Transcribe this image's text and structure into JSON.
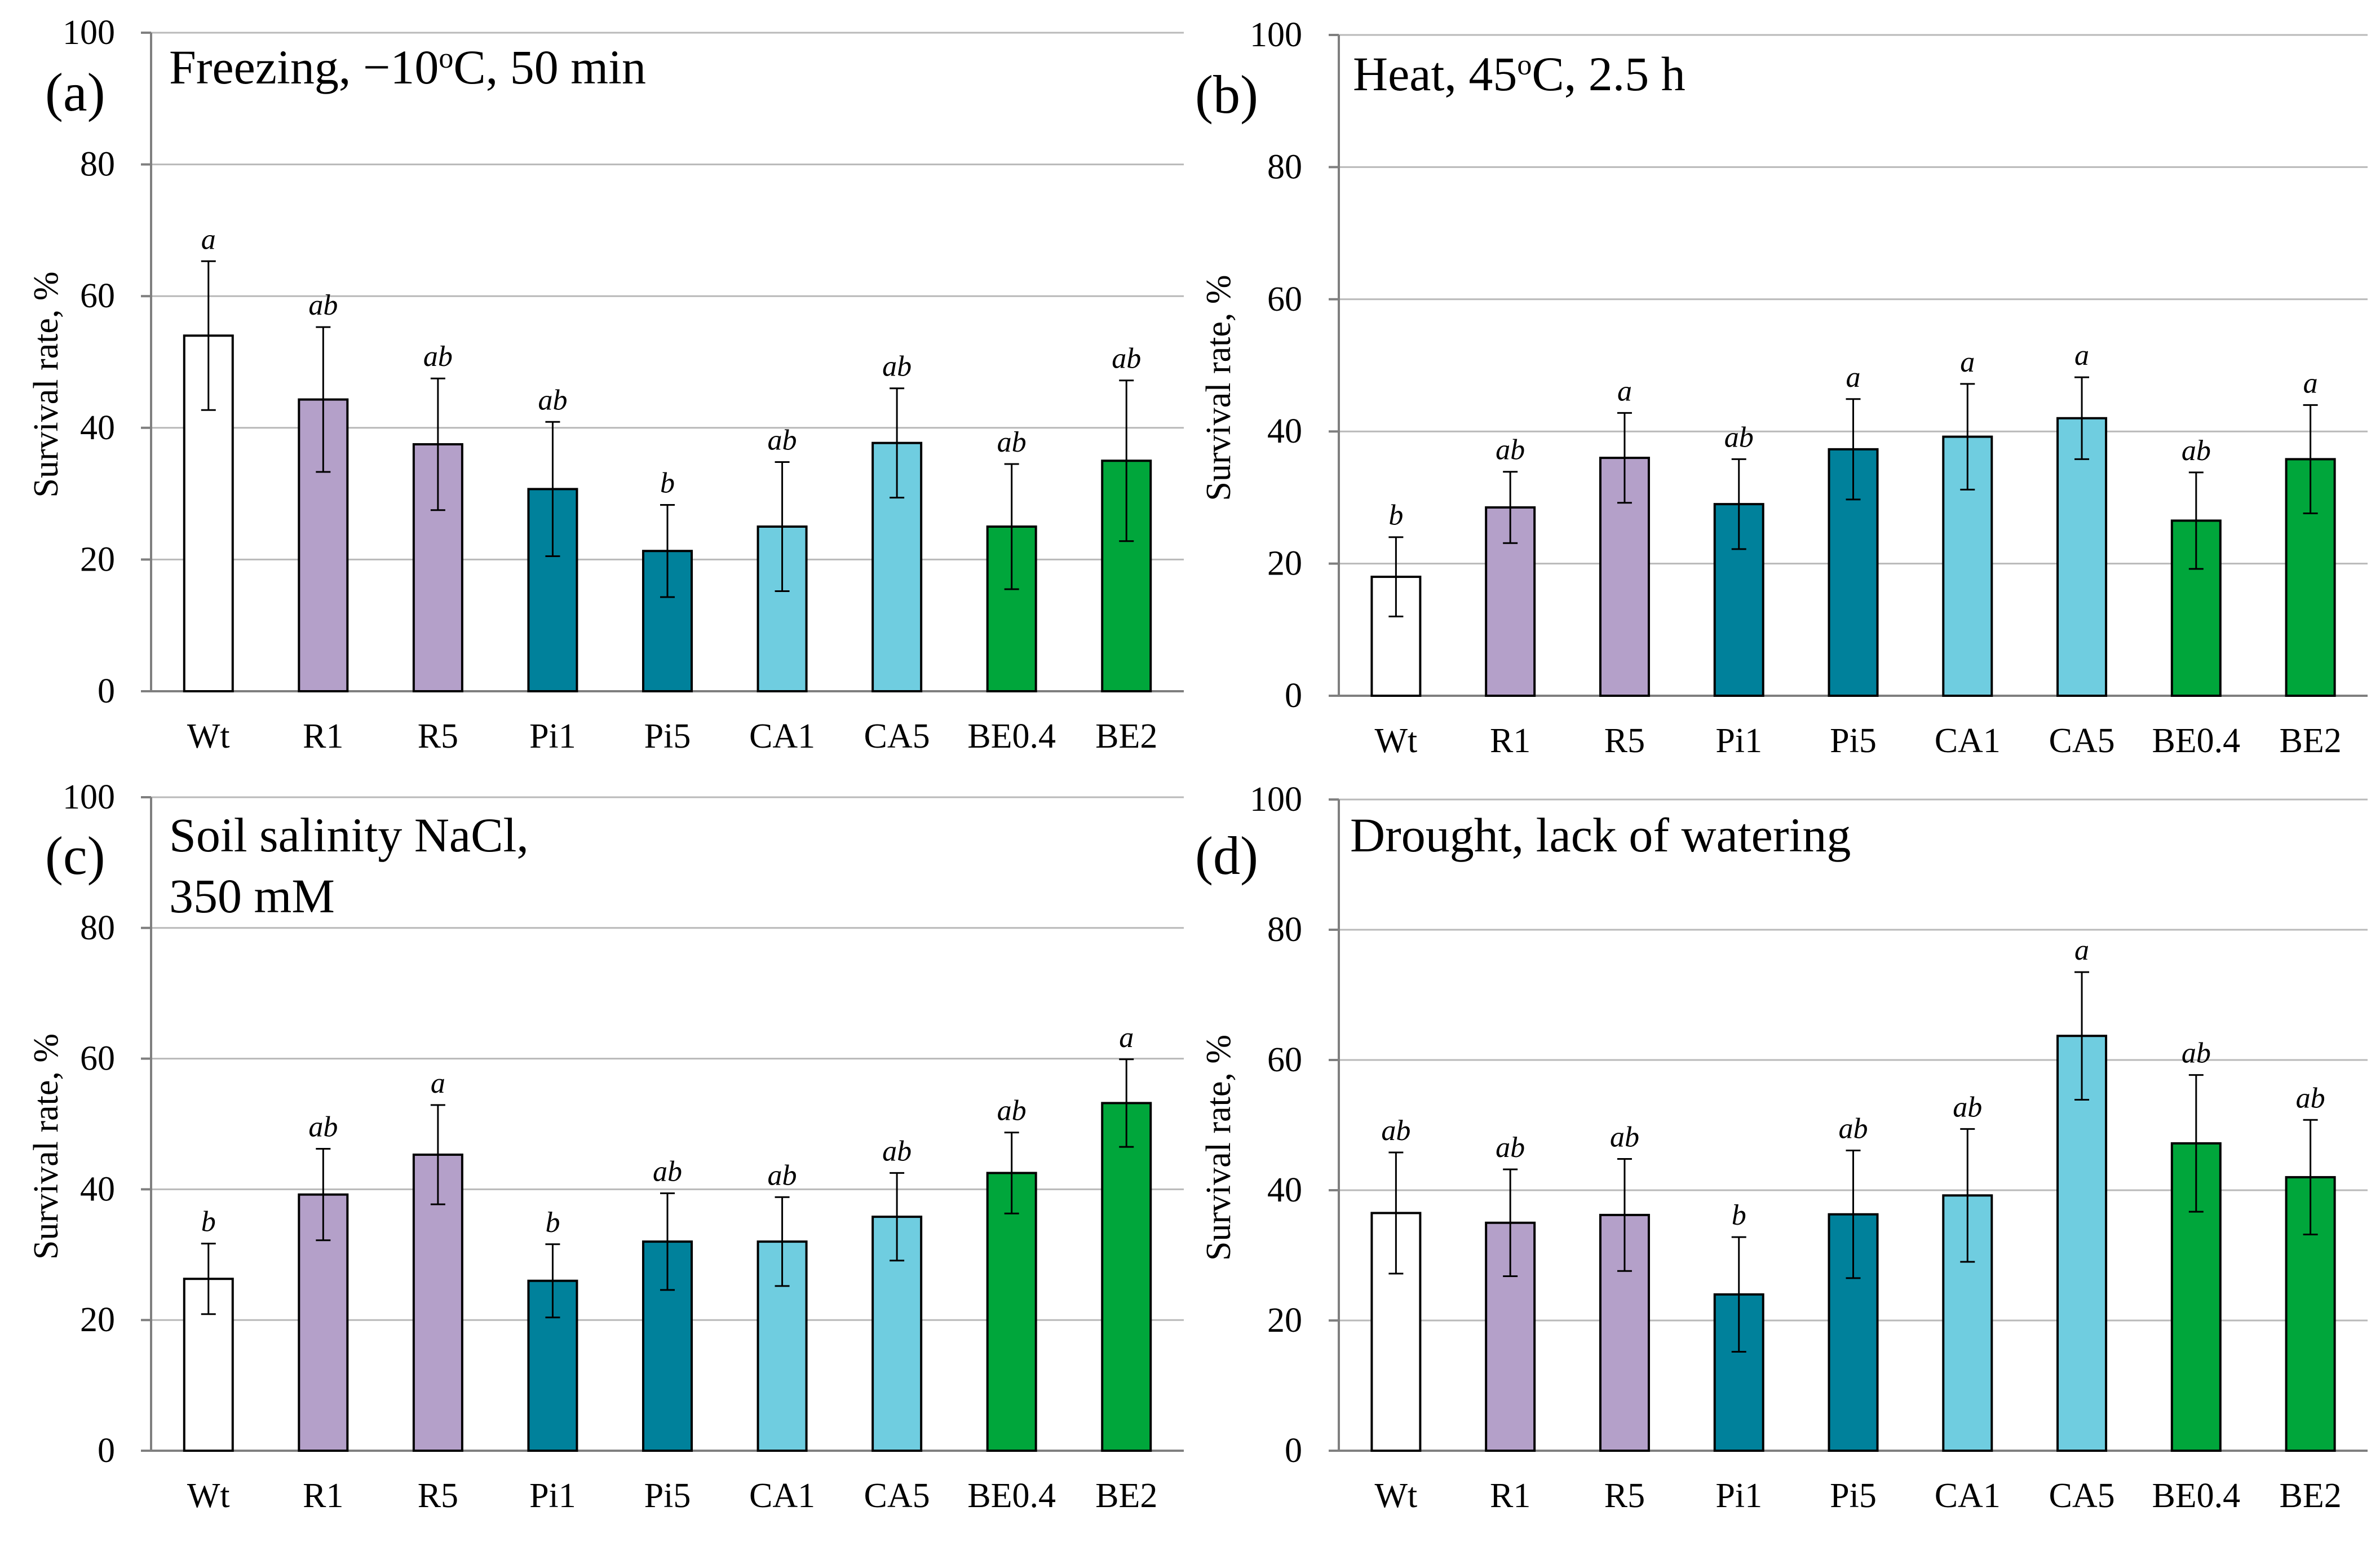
{
  "chart_data": [
    {
      "type": "bar",
      "panel": "(a)",
      "title": "Freezing, −10°C, 50 min",
      "title_lines": [
        [
          {
            "t": "Freezing,  −10"
          },
          {
            "t": "o",
            "sup": true
          },
          {
            "t": "C, 50 min"
          }
        ]
      ],
      "ylabel": "Survival rate, %",
      "ylim": [
        0,
        100
      ],
      "yticks": [
        "0",
        "20",
        "40",
        "60",
        "80",
        "100"
      ],
      "categories": [
        "Wt",
        "R1",
        "R5",
        "Pi1",
        "Pi5",
        "CA1",
        "CA5",
        "BE0.4",
        "BE2"
      ],
      "values": [
        54,
        44.3,
        37.5,
        30.7,
        21.3,
        25,
        37.7,
        25,
        35
      ],
      "errors": [
        11.3,
        11,
        10,
        10.2,
        7,
        9.8,
        8.3,
        9.5,
        12.2
      ],
      "significance": [
        "a",
        "ab",
        "ab",
        "ab",
        "b",
        "ab",
        "ab",
        "ab",
        "ab"
      ]
    },
    {
      "type": "bar",
      "panel": "(b)",
      "title": "Heat, 45°C, 2.5 h",
      "title_lines": [
        [
          {
            "t": "Heat, 45"
          },
          {
            "t": "o",
            "sup": true
          },
          {
            "t": "C, 2.5 h"
          }
        ]
      ],
      "ylabel": "Survival rate, %",
      "ylim": [
        0,
        100
      ],
      "yticks": [
        "0",
        "20",
        "40",
        "60",
        "80",
        "100"
      ],
      "categories": [
        "Wt",
        "R1",
        "R5",
        "Pi1",
        "Pi5",
        "CA1",
        "CA5",
        "BE0.4",
        "BE2"
      ],
      "values": [
        18,
        28.5,
        36,
        29,
        37.3,
        39.2,
        42,
        26.5,
        35.8
      ],
      "errors": [
        6,
        5.4,
        6.8,
        6.8,
        7.6,
        8,
        6.2,
        7.3,
        8.2
      ],
      "significance": [
        "b",
        "ab",
        "a",
        "ab",
        "a",
        "a",
        "a",
        "ab",
        "a"
      ]
    },
    {
      "type": "bar",
      "panel": "(c)",
      "title": "Soil salinity NaCl, 350 mM",
      "title_lines": [
        [
          {
            "t": "Soil salinity NaCl,"
          }
        ],
        [
          {
            "t": "350 mM"
          }
        ]
      ],
      "ylabel": "Survival rate, %",
      "ylim": [
        0,
        100
      ],
      "yticks": [
        "0",
        "20",
        "40",
        "60",
        "80",
        "100"
      ],
      "categories": [
        "Wt",
        "R1",
        "R5",
        "Pi1",
        "Pi5",
        "CA1",
        "CA5",
        "BE0.4",
        "BE2"
      ],
      "values": [
        26.3,
        39.2,
        45.3,
        26,
        32,
        32,
        35.8,
        42.5,
        53.2
      ],
      "errors": [
        5.4,
        7,
        7.6,
        5.6,
        7.4,
        6.8,
        6.7,
        6.2,
        6.7
      ],
      "significance": [
        "b",
        "ab",
        "a",
        "b",
        "ab",
        "ab",
        "ab",
        "ab",
        "a"
      ]
    },
    {
      "type": "bar",
      "panel": "(d)",
      "title": "Drought, lack of watering",
      "title_lines": [
        [
          {
            "t": "Drought, lack of watering"
          }
        ]
      ],
      "ylabel": "Survival rate, %",
      "ylim": [
        0,
        100
      ],
      "yticks": [
        "0",
        "20",
        "40",
        "60",
        "80",
        "100"
      ],
      "categories": [
        "Wt",
        "R1",
        "R5",
        "Pi1",
        "Pi5",
        "CA1",
        "CA5",
        "BE0.4",
        "BE2"
      ],
      "values": [
        36.5,
        35,
        36.2,
        24,
        36.3,
        39.2,
        63.7,
        47.2,
        42
      ],
      "errors": [
        9.3,
        8.2,
        8.6,
        8.8,
        9.8,
        10.2,
        9.8,
        10.5,
        8.8
      ],
      "significance": [
        "ab",
        "ab",
        "ab",
        "b",
        "ab",
        "ab",
        "a",
        "ab",
        "ab"
      ]
    }
  ],
  "colors": {
    "Wt": "#ffffff",
    "R": "#b4a0c9",
    "Pi": "#00819b",
    "CA": "#6fcde0",
    "BE": "#00a63b"
  }
}
